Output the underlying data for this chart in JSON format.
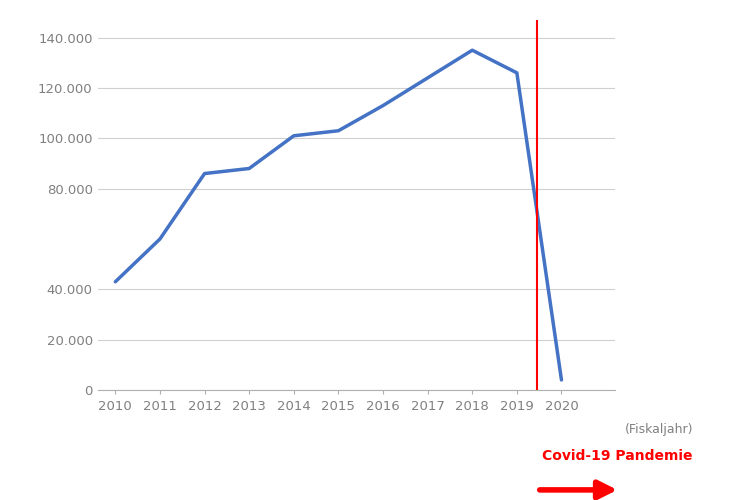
{
  "years": [
    2010,
    2011,
    2012,
    2013,
    2014,
    2015,
    2016,
    2017,
    2018,
    2019,
    2020
  ],
  "values": [
    43000,
    60000,
    86000,
    88000,
    101000,
    103000,
    113000,
    124000,
    135000,
    126000,
    4000
  ],
  "line_color": "#4472C4",
  "line_width": 2.5,
  "yticks": [
    0,
    20000,
    40000,
    80000,
    100000,
    120000,
    140000
  ],
  "ytick_labels": [
    "0",
    "20.000",
    "40.000",
    "80.000",
    "100.000",
    "120.000",
    "140.000"
  ],
  "covid_line_x": 2019.45,
  "covid_label": "Covid-19 Pandemie",
  "covid_color": "#FF0000",
  "background_color": "#FFFFFF",
  "grid_color": "#D0D0D0",
  "tick_label_color": "#808080",
  "fiskaljahr_label": "(Fiskaljahr)",
  "xlim_left": 2009.6,
  "xlim_right": 2021.2,
  "ylim_top": 147000
}
